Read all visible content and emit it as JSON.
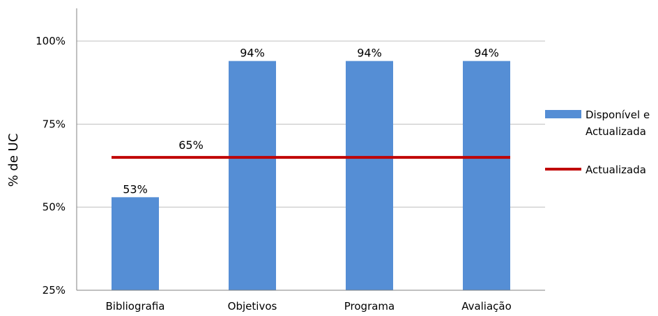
{
  "chart_data": {
    "type": "bar",
    "ylabel": "% de UC",
    "ylim": [
      25,
      100
    ],
    "yticks": [
      25,
      50,
      75,
      100
    ],
    "ytick_labels": [
      "25%",
      "50%",
      "75%",
      "100%"
    ],
    "grid": true,
    "legend_position": "right",
    "categories": [
      "Bibliografia",
      "Objetivos",
      "Programa",
      "Avaliação"
    ],
    "series": [
      {
        "name": "Disponível e Actualizada",
        "legend_lines": [
          "Disponível e",
          "Actualizada"
        ],
        "kind": "bar",
        "color": "#558ED5",
        "values": [
          53,
          94,
          94,
          94
        ],
        "labels": [
          "53%",
          "94%",
          "94%",
          "94%"
        ]
      },
      {
        "name": "Actualizada",
        "legend_lines": [
          "Actualizada"
        ],
        "kind": "line",
        "color": "#C00000",
        "values": [
          65,
          65,
          65,
          65
        ],
        "label": "65%"
      }
    ]
  }
}
